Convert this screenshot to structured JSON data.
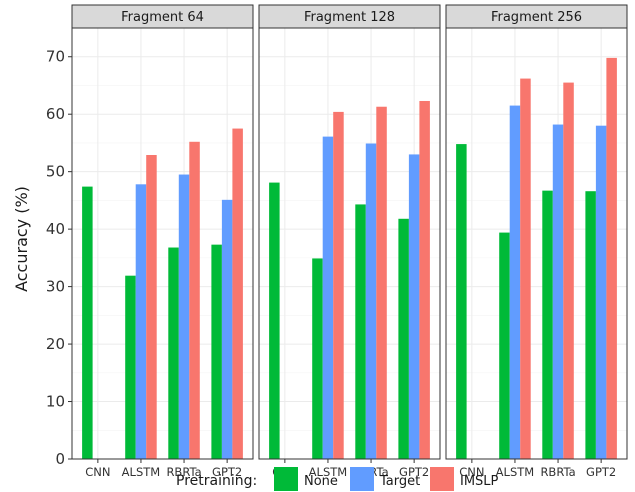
{
  "chart_data": {
    "type": "bar",
    "ylabel": "Accuracy (%)",
    "xlabel": "",
    "ylim": [
      0,
      75
    ],
    "yticks": [
      0,
      10,
      20,
      30,
      40,
      50,
      60,
      70
    ],
    "categories": [
      "CNN",
      "ALSTM",
      "RBRTa",
      "GPT2"
    ],
    "legend": {
      "title": "Pretraining:",
      "placement": "bottom"
    },
    "series_meta": [
      {
        "name": "None",
        "color": "#00ba38"
      },
      {
        "name": "Target",
        "color": "#619cff"
      },
      {
        "name": "IMSLP",
        "color": "#f8766d"
      }
    ],
    "panels": [
      {
        "title": "Fragment 64",
        "series": [
          {
            "name": "None",
            "values": [
              47.4,
              31.9,
              36.8,
              37.3
            ]
          },
          {
            "name": "Target",
            "values": [
              null,
              47.8,
              49.5,
              45.1
            ]
          },
          {
            "name": "IMSLP",
            "values": [
              null,
              52.9,
              55.2,
              57.5
            ]
          }
        ]
      },
      {
        "title": "Fragment 128",
        "series": [
          {
            "name": "None",
            "values": [
              48.1,
              34.9,
              44.3,
              41.8
            ]
          },
          {
            "name": "Target",
            "values": [
              null,
              56.1,
              54.9,
              53.0
            ]
          },
          {
            "name": "IMSLP",
            "values": [
              null,
              60.4,
              61.3,
              62.3
            ]
          }
        ]
      },
      {
        "title": "Fragment 256",
        "series": [
          {
            "name": "None",
            "values": [
              54.8,
              39.4,
              46.7,
              46.6
            ]
          },
          {
            "name": "Target",
            "values": [
              null,
              61.5,
              58.2,
              58.0
            ]
          },
          {
            "name": "IMSLP",
            "values": [
              null,
              66.2,
              65.5,
              69.8
            ]
          }
        ]
      }
    ]
  }
}
